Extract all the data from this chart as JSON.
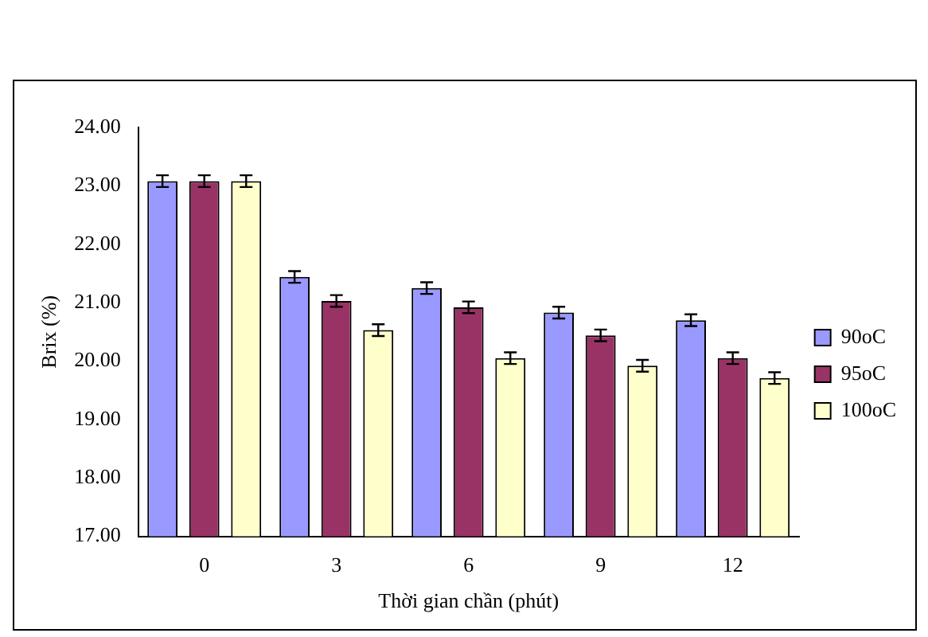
{
  "chart_data": {
    "type": "bar",
    "xlabel": "Thời gian chần (phút)",
    "ylabel": "Brix (%)",
    "categories": [
      "0",
      "3",
      "6",
      "9",
      "12"
    ],
    "series": [
      {
        "name": "90oC",
        "color": "#9999ff",
        "values": [
          23.08,
          21.44,
          21.25,
          20.83,
          20.7
        ],
        "errors": [
          0.1,
          0.1,
          0.1,
          0.1,
          0.1
        ]
      },
      {
        "name": "95oC",
        "color": "#993366",
        "values": [
          23.08,
          21.03,
          20.92,
          20.44,
          20.05
        ],
        "errors": [
          0.1,
          0.1,
          0.1,
          0.1,
          0.1
        ]
      },
      {
        "name": "100oC",
        "color": "#ffffcc",
        "values": [
          23.08,
          20.53,
          20.05,
          19.92,
          19.71
        ],
        "errors": [
          0.1,
          0.1,
          0.1,
          0.1,
          0.1
        ]
      }
    ],
    "ylim": [
      17,
      24
    ],
    "yticks": [
      {
        "value": 17,
        "label": "17.00"
      },
      {
        "value": 18,
        "label": "18.00"
      },
      {
        "value": 19,
        "label": "19.00"
      },
      {
        "value": 20,
        "label": "20.00"
      },
      {
        "value": 21,
        "label": "21.00"
      },
      {
        "value": 22,
        "label": "22.00"
      },
      {
        "value": 23,
        "label": "23.00"
      },
      {
        "value": 24,
        "label": "24.00"
      }
    ],
    "grid": false,
    "legend": "right"
  }
}
